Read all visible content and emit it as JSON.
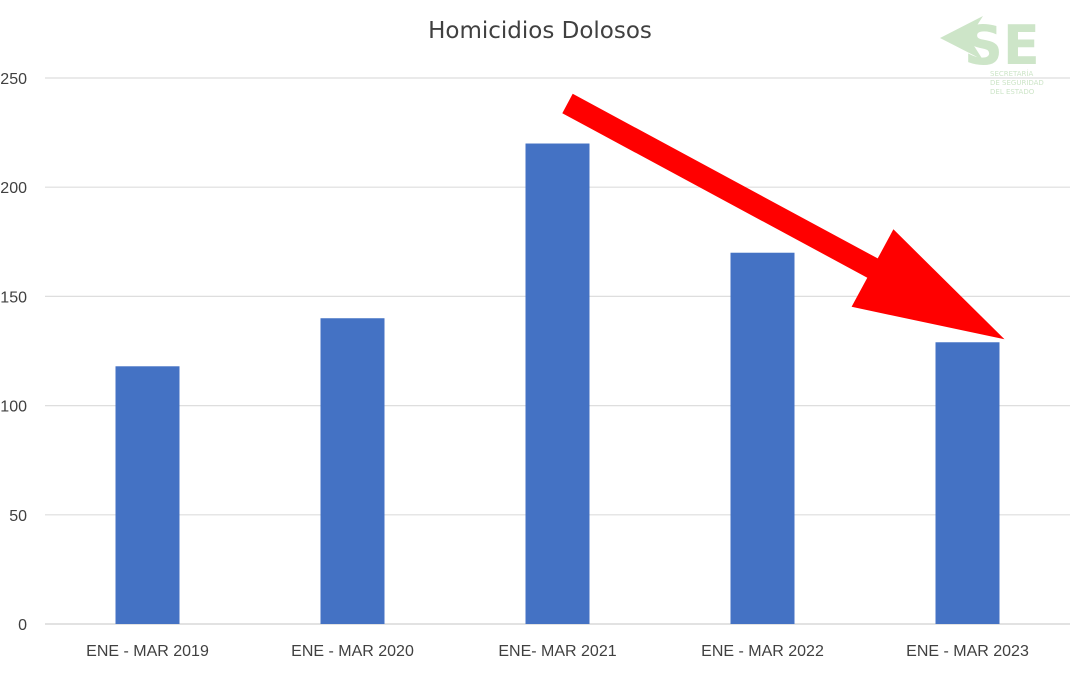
{
  "chart_data": {
    "type": "bar",
    "title": "Homicidios Dolosos",
    "categories": [
      "ENE - MAR 2019",
      "ENE - MAR 2020",
      "ENE- MAR 2021",
      "ENE - MAR 2022",
      "ENE - MAR 2023"
    ],
    "values": [
      118,
      140,
      220,
      170,
      129
    ],
    "ylim": [
      0,
      250
    ],
    "yticks": [
      0,
      50,
      100,
      150,
      200,
      250
    ],
    "ytick_labels": [
      "0",
      "50",
      "100",
      "150",
      "200",
      "250"
    ],
    "xlabel": "",
    "ylabel": "",
    "grid": true,
    "legend": "none",
    "bar_color": "#4472c4",
    "annotation": {
      "type": "arrow",
      "color": "#ff0000",
      "from_category": "ENE- MAR 2021",
      "to_category": "ENE - MAR 2023"
    }
  },
  "logo": {
    "name": "sse-logo",
    "text": "SE",
    "subtext": [
      "SECRETARÍA",
      "DE SEGURIDAD",
      "DEL ESTADO"
    ],
    "color": "#cde5c8"
  }
}
